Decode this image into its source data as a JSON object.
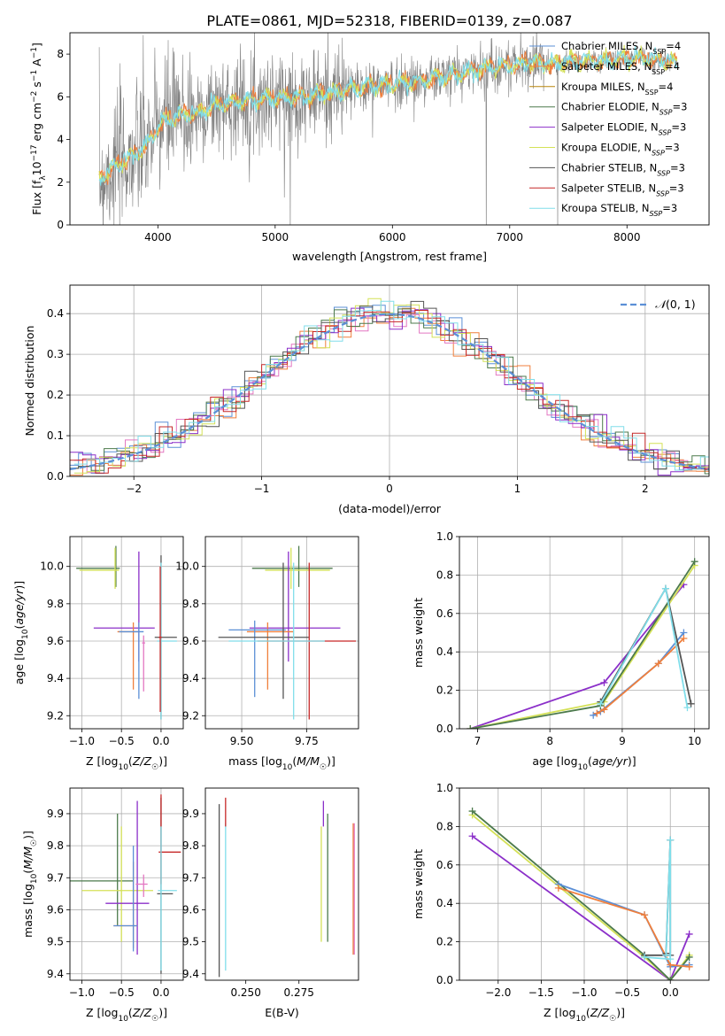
{
  "title": "PLATE=0861, MJD=52318, FIBERID=0139, z=0.087",
  "colors": {
    "chabrier_miles": "#5b8fd6",
    "salpeter_miles": "#f07f3c",
    "kroupa_miles": "#b8860b",
    "chabrier_elodie": "#4c7a4c",
    "salpeter_elodie": "#8b2fc9",
    "kroupa_elodie": "#d4e157",
    "chabrier_stelib": "#555555",
    "salpeter_stelib": "#c62828",
    "kroupa_stelib": "#80deea",
    "pink": "#e377c2",
    "data": "#808080",
    "gauss": "#5b8fd6"
  },
  "chart_data": [
    {
      "type": "line",
      "id": "spectrum",
      "xlabel": "wavelength [Angstrom, rest frame]",
      "ylabel": "Flux [f_λ 10^-17 erg cm^-2 s^-1 A^-1]",
      "xlim": [
        3250,
        8700
      ],
      "ylim": [
        0,
        9
      ],
      "xticks": [
        4000,
        5000,
        6000,
        7000,
        8000
      ],
      "yticks": [
        0,
        2,
        4,
        6,
        8
      ],
      "grid": false,
      "legend_position": "right",
      "legend": [
        {
          "label": "Chabrier MILES, N",
          "sub": "SSP",
          "suffix": "=4",
          "color": "chabrier_miles"
        },
        {
          "label": "Salpeter MILES, N",
          "sub": "SSP",
          "suffix": "=4",
          "color": "salpeter_miles"
        },
        {
          "label": "Kroupa MILES, N",
          "sub": "SSP",
          "suffix": "=4",
          "color": "kroupa_miles"
        },
        {
          "label": "Chabrier ELODIE, N",
          "sub": "SSP",
          "suffix": "=3",
          "color": "chabrier_elodie"
        },
        {
          "label": "Salpeter ELODIE, N",
          "sub": "SSP",
          "suffix": "=3",
          "color": "salpeter_elodie"
        },
        {
          "label": "Kroupa ELODIE, N",
          "sub": "SSP",
          "suffix": "=3",
          "color": "kroupa_elodie"
        },
        {
          "label": "Chabrier STELIB, N",
          "sub": "SSP",
          "suffix": "=3",
          "color": "chabrier_stelib"
        },
        {
          "label": "Salpeter STELIB, N",
          "sub": "SSP",
          "suffix": "=3",
          "color": "salpeter_stelib"
        },
        {
          "label": "Kroupa STELIB, N",
          "sub": "SSP",
          "suffix": "=3",
          "color": "kroupa_stelib"
        }
      ],
      "model_continuum": [
        [
          3500,
          2.1
        ],
        [
          3600,
          2.6
        ],
        [
          3700,
          3.0
        ],
        [
          3800,
          3.3
        ],
        [
          3900,
          3.7
        ],
        [
          4000,
          4.6
        ],
        [
          4100,
          5.0
        ],
        [
          4200,
          5.1
        ],
        [
          4300,
          5.2
        ],
        [
          4500,
          5.6
        ],
        [
          4700,
          5.8
        ],
        [
          4900,
          5.9
        ],
        [
          5100,
          6.0
        ],
        [
          5300,
          6.0
        ],
        [
          5500,
          6.2
        ],
        [
          5800,
          6.5
        ],
        [
          6000,
          6.6
        ],
        [
          6300,
          6.8
        ],
        [
          6500,
          7.0
        ],
        [
          6700,
          7.3
        ],
        [
          6900,
          7.4
        ],
        [
          7200,
          7.6
        ],
        [
          7400,
          7.6
        ],
        [
          7800,
          7.7
        ],
        [
          8000,
          7.8
        ],
        [
          8200,
          7.8
        ],
        [
          8400,
          7.6
        ]
      ]
    },
    {
      "type": "histogram",
      "id": "residuals",
      "xlabel": "(data-model)/error",
      "ylabel": "Normed distribution",
      "xlim": [
        -2.5,
        2.5
      ],
      "ylim": [
        0,
        0.47
      ],
      "xticks": [
        -2,
        -1,
        0,
        1,
        2
      ],
      "yticks": [
        0.0,
        0.1,
        0.2,
        0.3,
        0.4
      ],
      "grid": true,
      "legend_position": "top-right",
      "legend": [
        {
          "label": "N(0, 1)",
          "style": "dashed",
          "color": "gauss"
        }
      ],
      "gaussian_sigma": 1.0,
      "bin_width": 0.1
    },
    {
      "type": "scatter",
      "id": "age_vs_Z",
      "xlabel": "Z [log10(Z/Z☉)]",
      "ylabel": "age [log10(age/yr)]",
      "xlim": [
        -1.15,
        0.28
      ],
      "ylim": [
        9.13,
        10.16
      ],
      "xticks": [
        -1.0,
        -0.5,
        0.0
      ],
      "yticks": [
        9.2,
        9.4,
        9.6,
        9.8,
        10.0
      ],
      "grid": true,
      "errorbars": [
        {
          "x": -0.57,
          "y": 9.99,
          "xerr": [
            0.5,
            0.05
          ],
          "yerr": [
            0.1,
            0.12
          ],
          "color": "chabrier_elodie"
        },
        {
          "x": -0.58,
          "y": 9.98,
          "xerr": [
            0.45,
            0.05
          ],
          "yerr": [
            0.1,
            0.12
          ],
          "color": "kroupa_elodie"
        },
        {
          "x": -0.28,
          "y": 9.67,
          "xerr": [
            0.57,
            0.2
          ],
          "yerr": [
            0.18,
            0.41
          ],
          "color": "salpeter_elodie"
        },
        {
          "x": -0.35,
          "y": 9.65,
          "xerr": [
            0.2,
            0.06
          ],
          "yerr": [
            0.31,
            0.05
          ],
          "color": "salpeter_miles"
        },
        {
          "x": -0.28,
          "y": 9.65,
          "xerr": [
            0.25,
            0.06
          ],
          "yerr": [
            0.36,
            0.05
          ],
          "color": "chabrier_miles"
        },
        {
          "x": -0.22,
          "y": 9.59,
          "xerr": [
            0.02,
            0.02
          ],
          "yerr": [
            0.26,
            0.04
          ],
          "color": "pink"
        },
        {
          "x": 0.0,
          "y": 9.62,
          "xerr": [
            0.08,
            0.2
          ],
          "yerr": [
            0.44,
            0.44
          ],
          "color": "chabrier_stelib"
        },
        {
          "x": 0.0,
          "y": 9.6,
          "xerr": [
            0.05,
            0.2
          ],
          "yerr": [
            0.42,
            0.42
          ],
          "color": "kroupa_stelib"
        },
        {
          "x": -0.01,
          "y": 9.62,
          "xerr": [
            0.02,
            0.02
          ],
          "yerr": [
            0.4,
            0.38
          ],
          "color": "salpeter_stelib"
        }
      ]
    },
    {
      "type": "scatter",
      "id": "age_vs_mass",
      "xlabel": "mass [log10(M/M☉)]",
      "ylabel": "",
      "xlim": [
        9.36,
        9.95
      ],
      "ylim": [
        9.13,
        10.16
      ],
      "xticks": [
        9.5,
        9.75
      ],
      "yticks": [
        9.2,
        9.4,
        9.6,
        9.8,
        10.0
      ],
      "grid": true,
      "errorbars": [
        {
          "x": 9.72,
          "y": 9.99,
          "xerr": [
            0.18,
            0.13
          ],
          "yerr": [
            0.1,
            0.12
          ],
          "color": "chabrier_elodie"
        },
        {
          "x": 9.69,
          "y": 9.98,
          "xerr": [
            0.1,
            0.15
          ],
          "yerr": [
            0.1,
            0.12
          ],
          "color": "kroupa_elodie"
        },
        {
          "x": 9.68,
          "y": 9.67,
          "xerr": [
            0.15,
            0.2
          ],
          "yerr": [
            0.18,
            0.41
          ],
          "color": "salpeter_elodie"
        },
        {
          "x": 9.6,
          "y": 9.65,
          "xerr": [
            0.08,
            0.1
          ],
          "yerr": [
            0.31,
            0.05
          ],
          "color": "salpeter_miles"
        },
        {
          "x": 9.55,
          "y": 9.66,
          "xerr": [
            0.1,
            0.12
          ],
          "yerr": [
            0.36,
            0.05
          ],
          "color": "chabrier_miles"
        },
        {
          "x": 9.66,
          "y": 9.62,
          "xerr": [
            0.25,
            0.1
          ],
          "yerr": [
            0.33,
            0.4
          ],
          "color": "chabrier_stelib"
        },
        {
          "x": 9.76,
          "y": 9.6,
          "xerr": [
            0.2,
            0.18
          ],
          "yerr": [
            0.42,
            0.42
          ],
          "color": "salpeter_stelib"
        },
        {
          "x": 9.7,
          "y": 9.6,
          "xerr": [
            0.25,
            0.12
          ],
          "yerr": [
            0.42,
            0.42
          ],
          "color": "kroupa_stelib"
        }
      ]
    },
    {
      "type": "line",
      "id": "weight_vs_age",
      "xlabel": "age [log10(age/yr)]",
      "ylabel": "mass weight",
      "xlim": [
        6.75,
        10.2
      ],
      "ylim": [
        0,
        1.0
      ],
      "xticks": [
        7,
        8,
        9,
        10
      ],
      "yticks": [
        0.0,
        0.2,
        0.4,
        0.6,
        0.8,
        1.0
      ],
      "grid": true,
      "series": [
        {
          "color": "salpeter_elodie",
          "x": [
            6.9,
            8.75,
            9.85
          ],
          "y": [
            0.0,
            0.24,
            0.75
          ]
        },
        {
          "color": "chabrier_miles",
          "x": [
            8.6,
            8.7,
            9.5,
            9.85
          ],
          "y": [
            0.07,
            0.09,
            0.34,
            0.5
          ]
        },
        {
          "color": "salpeter_miles",
          "x": [
            8.65,
            8.75,
            9.5,
            9.85
          ],
          "y": [
            0.08,
            0.1,
            0.34,
            0.47
          ]
        },
        {
          "color": "kroupa_elodie",
          "x": [
            6.9,
            8.75,
            10.0
          ],
          "y": [
            0.0,
            0.14,
            0.85
          ]
        },
        {
          "color": "chabrier_elodie",
          "x": [
            6.9,
            8.7,
            10.0
          ],
          "y": [
            0.0,
            0.12,
            0.87
          ]
        },
        {
          "color": "chabrier_stelib",
          "x": [
            8.7,
            9.6,
            9.95
          ],
          "y": [
            0.14,
            0.73,
            0.13
          ]
        },
        {
          "color": "kroupa_stelib",
          "x": [
            8.7,
            9.6,
            9.9
          ],
          "y": [
            0.13,
            0.73,
            0.11
          ]
        }
      ]
    },
    {
      "type": "scatter",
      "id": "mass_vs_Z",
      "xlabel": "Z [log10(Z/Z☉)]",
      "ylabel": "mass [log10(M/M☉)]",
      "xlim": [
        -1.15,
        0.28
      ],
      "ylim": [
        9.38,
        9.98
      ],
      "xticks": [
        -1.0,
        -0.5,
        0.0
      ],
      "yticks": [
        9.4,
        9.5,
        9.6,
        9.7,
        9.8,
        9.9
      ],
      "grid": true,
      "errorbars": [
        {
          "x": -0.55,
          "y": 9.69,
          "xerr": [
            0.6,
            0.2
          ],
          "yerr": [
            0.14,
            0.21
          ],
          "color": "chabrier_elodie"
        },
        {
          "x": -0.5,
          "y": 9.66,
          "xerr": [
            0.5,
            0.4
          ],
          "yerr": [
            0.16,
            0.2
          ],
          "color": "kroupa_elodie"
        },
        {
          "x": -0.3,
          "y": 9.62,
          "xerr": [
            0.4,
            0.15
          ],
          "yerr": [
            0.16,
            0.32
          ],
          "color": "salpeter_elodie"
        },
        {
          "x": -0.35,
          "y": 9.55,
          "xerr": [
            0.25,
            0.05
          ],
          "yerr": [
            0.07,
            0.2
          ],
          "color": "salpeter_miles"
        },
        {
          "x": -0.35,
          "y": 9.55,
          "xerr": [
            0.25,
            0.05
          ],
          "yerr": [
            0.08,
            0.25
          ],
          "color": "chabrier_miles"
        },
        {
          "x": -0.22,
          "y": 9.68,
          "xerr": [
            0.1,
            0.05
          ],
          "yerr": [
            0.04,
            0.03
          ],
          "color": "pink"
        },
        {
          "x": 0.0,
          "y": 9.65,
          "xerr": [
            0.05,
            0.15
          ],
          "yerr": [
            0.25,
            0.3
          ],
          "color": "chabrier_stelib"
        },
        {
          "x": 0.0,
          "y": 9.78,
          "xerr": [
            0.03,
            0.25
          ],
          "yerr": [
            0.1,
            0.18
          ],
          "color": "salpeter_stelib"
        },
        {
          "x": 0.0,
          "y": 9.66,
          "xerr": [
            0.04,
            0.2
          ],
          "yerr": [
            0.25,
            0.2
          ],
          "color": "kroupa_stelib"
        }
      ]
    },
    {
      "type": "scatter",
      "id": "mass_vs_ebv",
      "xlabel": "E(B-V)",
      "ylabel": "",
      "xlim": [
        0.231,
        0.303
      ],
      "ylim": [
        9.38,
        9.98
      ],
      "xticks": [
        0.25,
        0.275
      ],
      "yticks": [
        9.4,
        9.5,
        9.6,
        9.7,
        9.8,
        9.9
      ],
      "grid": false,
      "errorbars": [
        {
          "x": 0.2375,
          "y": 9.66,
          "yerr": [
            0.27,
            0.27
          ],
          "color": "chabrier_stelib"
        },
        {
          "x": 0.2405,
          "y": 9.66,
          "yerr": [
            0.25,
            0.21
          ],
          "color": "kroupa_stelib"
        },
        {
          "x": 0.2405,
          "y": 9.9,
          "yerr": [
            0.04,
            0.05
          ],
          "color": "salpeter_stelib"
        },
        {
          "x": 0.2855,
          "y": 9.68,
          "yerr": [
            0.18,
            0.18
          ],
          "color": "kroupa_elodie"
        },
        {
          "x": 0.2865,
          "y": 9.9,
          "yerr": [
            0.04,
            0.04
          ],
          "color": "salpeter_elodie"
        },
        {
          "x": 0.2885,
          "y": 9.7,
          "yerr": [
            0.2,
            0.2
          ],
          "color": "chabrier_elodie"
        },
        {
          "x": 0.3005,
          "y": 9.66,
          "yerr": [
            0.2,
            0.21
          ],
          "color": "salpeter_miles"
        },
        {
          "x": 0.301,
          "y": 9.66,
          "yerr": [
            0.2,
            0.21
          ],
          "color": "pink"
        }
      ]
    },
    {
      "type": "line",
      "id": "weight_vs_Z",
      "xlabel": "Z [log10(Z/Z☉)]",
      "ylabel": "mass weight",
      "xlim": [
        -2.45,
        0.45
      ],
      "ylim": [
        0,
        1.0
      ],
      "xticks": [
        -2.0,
        -1.5,
        -1.0,
        -0.5,
        0.0
      ],
      "yticks": [
        0.0,
        0.2,
        0.4,
        0.6,
        0.8,
        1.0
      ],
      "grid": true,
      "series": [
        {
          "color": "salpeter_elodie",
          "x": [
            -2.3,
            0.0,
            0.22
          ],
          "y": [
            0.75,
            0.0,
            0.24
          ]
        },
        {
          "color": "kroupa_elodie",
          "x": [
            -2.3,
            -0.3,
            0.0,
            0.22
          ],
          "y": [
            0.86,
            0.12,
            0.0,
            0.13
          ]
        },
        {
          "color": "chabrier_elodie",
          "x": [
            -2.3,
            -0.3,
            0.0,
            0.22
          ],
          "y": [
            0.88,
            0.13,
            0.0,
            0.12
          ]
        },
        {
          "color": "chabrier_miles",
          "x": [
            -1.3,
            -0.3,
            0.0,
            0.22
          ],
          "y": [
            0.5,
            0.34,
            0.07,
            0.08
          ]
        },
        {
          "color": "salpeter_miles",
          "x": [
            -1.3,
            -0.3,
            0.0,
            0.22
          ],
          "y": [
            0.48,
            0.34,
            0.08,
            0.07
          ]
        },
        {
          "color": "chabrier_stelib",
          "x": [
            -0.3,
            0.0,
            0.0,
            -0.05
          ],
          "y": [
            0.13,
            0.13,
            0.73,
            0.14
          ]
        },
        {
          "color": "kroupa_stelib",
          "x": [
            -0.3,
            0.0,
            0.0,
            -0.05
          ],
          "y": [
            0.12,
            0.11,
            0.73,
            0.13
          ]
        }
      ]
    }
  ]
}
